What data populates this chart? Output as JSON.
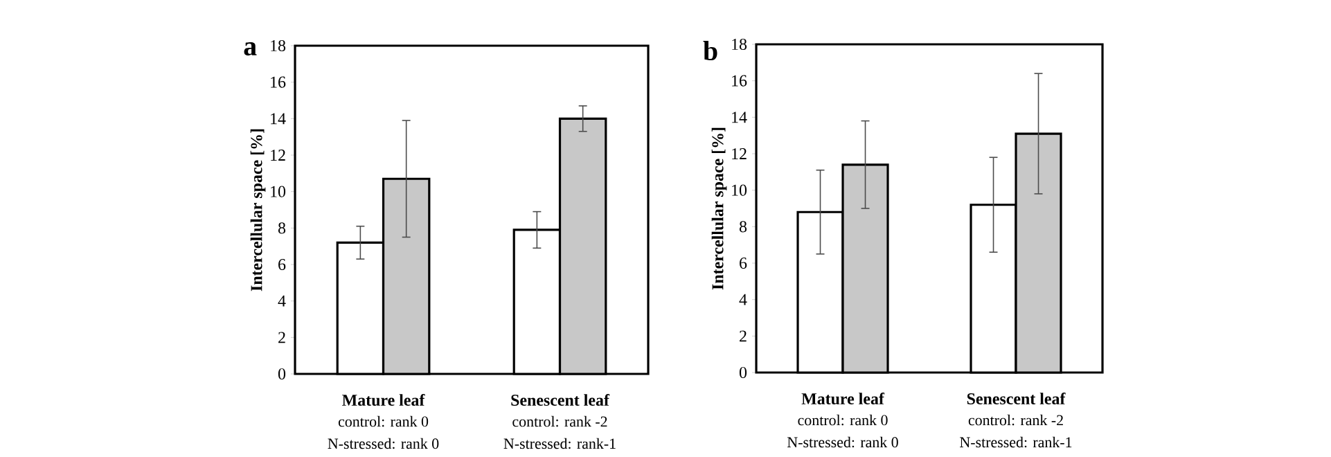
{
  "chart_data": [
    {
      "type": "bar",
      "title": "a",
      "ylabel": "Intercellular space [%]",
      "categories": [
        "Mature leaf",
        "Senescent leaf"
      ],
      "series": [
        {
          "color": "#ffffff",
          "values": [
            7.2,
            7.9
          ],
          "errors": [
            0.9,
            1.0
          ]
        },
        {
          "color": "#c8c8c8",
          "values": [
            10.7,
            14.0
          ],
          "errors": [
            3.2,
            0.7
          ]
        }
      ],
      "ylim": [
        0,
        18
      ],
      "yticks": [
        0,
        2,
        4,
        6,
        8,
        10,
        12,
        14,
        16,
        18
      ],
      "annotations": [
        "control: rank 0",
        "N-stressed: rank 0",
        "control: rank -2",
        "N-stressed: rank-1"
      ]
    },
    {
      "type": "bar",
      "title": "b",
      "ylabel": "Intercellular space [%]",
      "categories": [
        "Mature leaf",
        "Senescent leaf"
      ],
      "series": [
        {
          "color": "#ffffff",
          "values": [
            8.8,
            9.2
          ],
          "errors": [
            2.3,
            2.6
          ]
        },
        {
          "color": "#c8c8c8",
          "values": [
            11.4,
            13.1
          ],
          "errors": [
            2.4,
            3.3
          ]
        }
      ],
      "ylim": [
        0,
        18
      ],
      "yticks": [
        0,
        2,
        4,
        6,
        8,
        10,
        12,
        14,
        16,
        18
      ],
      "annotations": [
        "control: rank 0",
        "N-stressed: rank 0",
        "control: rank -2",
        "N-stressed: rank-1"
      ]
    }
  ]
}
